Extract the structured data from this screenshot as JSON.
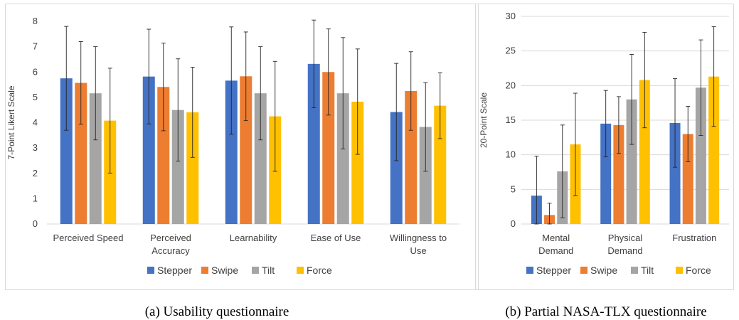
{
  "captions": [
    "(a) Usability questionnaire",
    "(b) Partial NASA-TLX questionnaire"
  ],
  "colors": {
    "Stepper": "#4472c4",
    "Swipe": "#ed7d31",
    "Tilt": "#a5a5a5",
    "Force": "#ffc000"
  },
  "chart_data": [
    {
      "type": "bar",
      "title": "",
      "xlabel": "",
      "ylabel": "7-Point Likert Scale",
      "ylim": [
        0,
        8
      ],
      "yticks": [
        0,
        1,
        2,
        3,
        4,
        5,
        6,
        7,
        8
      ],
      "grid": false,
      "legend_position": "bottom",
      "categories": [
        [
          "Perceived Speed"
        ],
        [
          "Perceived",
          "Accuracy"
        ],
        [
          "Learnability"
        ],
        [
          "Ease of Use"
        ],
        [
          "Willingness to",
          "Use"
        ]
      ],
      "series": [
        {
          "name": "Stepper",
          "values": [
            5.75,
            5.82,
            5.66,
            6.32,
            4.42
          ],
          "error": [
            2.05,
            1.87,
            2.12,
            1.73,
            1.92
          ]
        },
        {
          "name": "Swipe",
          "values": [
            5.57,
            5.41,
            5.83,
            6.0,
            5.25
          ],
          "error": [
            1.63,
            1.73,
            1.75,
            1.7,
            1.55
          ]
        },
        {
          "name": "Tilt",
          "values": [
            5.16,
            4.5,
            5.16,
            5.16,
            3.83
          ],
          "error": [
            1.84,
            2.02,
            1.84,
            2.2,
            1.75
          ]
        },
        {
          "name": "Force",
          "values": [
            4.08,
            4.41,
            4.25,
            4.83,
            4.67
          ],
          "error": [
            2.07,
            1.78,
            2.17,
            2.08,
            1.3
          ]
        }
      ]
    },
    {
      "type": "bar",
      "title": "",
      "xlabel": "",
      "ylabel": "20-Point Scale",
      "ylim": [
        0,
        30
      ],
      "yticks": [
        0,
        5,
        10,
        15,
        20,
        25,
        30
      ],
      "grid": true,
      "legend_position": "bottom",
      "categories": [
        [
          "Mental",
          "Demand"
        ],
        [
          "Physical",
          "Demand"
        ],
        [
          "Frustration"
        ]
      ],
      "series": [
        {
          "name": "Stepper",
          "values": [
            4.1,
            14.5,
            14.6
          ],
          "error": [
            5.7,
            4.8,
            6.4
          ]
        },
        {
          "name": "Swipe",
          "values": [
            1.3,
            14.3,
            13.0
          ],
          "error": [
            1.7,
            4.1,
            4.0
          ]
        },
        {
          "name": "Tilt",
          "values": [
            7.6,
            18.0,
            19.7
          ],
          "error": [
            6.7,
            6.5,
            6.9
          ]
        },
        {
          "name": "Force",
          "values": [
            11.5,
            20.8,
            21.3
          ],
          "error": [
            7.4,
            6.9,
            7.2
          ]
        }
      ]
    }
  ]
}
